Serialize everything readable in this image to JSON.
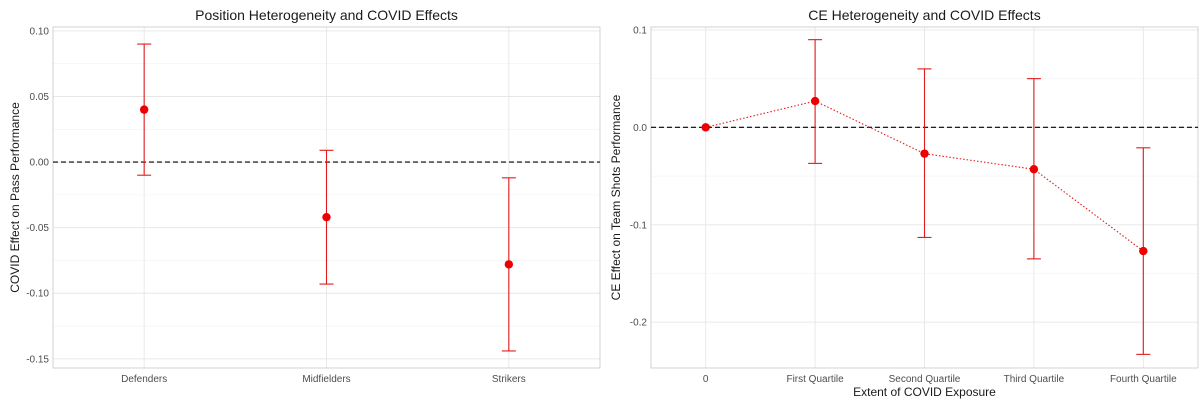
{
  "colors": {
    "point": "#ee0000",
    "errorbar": "#e31a1c",
    "refline": "#000000"
  },
  "chart_data": [
    {
      "type": "scatter",
      "title": "Position Heterogeneity and COVID Effects",
      "xlabel": "",
      "ylabel": "COVID Effect on Pass Performance",
      "categories": [
        "Defenders",
        "Midfielders",
        "Strikers"
      ],
      "values": [
        0.04,
        -0.042,
        -0.078
      ],
      "ci_low": [
        -0.01,
        -0.093,
        -0.144
      ],
      "ci_high": [
        0.09,
        0.009,
        -0.012
      ],
      "ylim": [
        -0.157,
        0.103
      ],
      "yticks": [
        -0.15,
        -0.1,
        -0.05,
        0.0,
        0.05,
        0.1
      ],
      "ytick_labels": [
        "-0.15",
        "-0.10",
        "-0.05",
        "0.00",
        "0.05",
        "0.10"
      ],
      "reference_line": 0,
      "connect_points": false,
      "grid": true
    },
    {
      "type": "scatter",
      "title": "CE Heterogeneity and COVID Effects",
      "xlabel": "Extent of COVID Exposure",
      "ylabel": "CE Effect on Team Shots Performance",
      "categories": [
        "0",
        "First Quartile",
        "Second Quartile",
        "Third Quartile",
        "Fourth Quartile"
      ],
      "values": [
        0.0,
        0.027,
        -0.027,
        -0.043,
        -0.127
      ],
      "ci_low": [
        null,
        -0.037,
        -0.113,
        -0.135,
        -0.233
      ],
      "ci_high": [
        null,
        0.09,
        0.06,
        0.05,
        -0.021
      ],
      "ylim": [
        -0.247,
        0.103
      ],
      "yticks": [
        -0.2,
        -0.1,
        0.0,
        0.1
      ],
      "ytick_labels": [
        "-0.2",
        "-0.1",
        "0.0",
        "0.1"
      ],
      "reference_line": 0,
      "connect_points": true,
      "grid": true
    }
  ]
}
